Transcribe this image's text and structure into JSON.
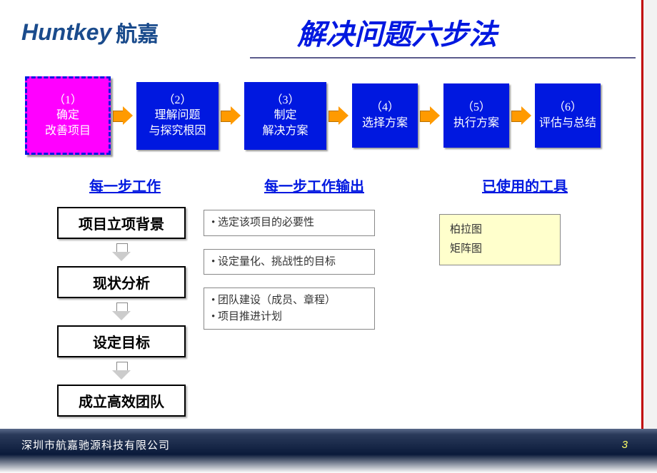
{
  "logo": {
    "en": "Huntkey",
    "cn": "航嘉"
  },
  "title": "解决问题六步法",
  "steps": [
    {
      "num": "（1）",
      "l1": "确定",
      "l2": "改善项目",
      "kind": "active"
    },
    {
      "num": "（2）",
      "l1": "理解问题",
      "l2": "与探究根因",
      "kind": "normal"
    },
    {
      "num": "（3）",
      "l1": "制定",
      "l2": "解决方案",
      "kind": "normal"
    },
    {
      "num": "（4）",
      "l1": "选择方案",
      "l2": "",
      "kind": "small"
    },
    {
      "num": "（5）",
      "l1": "执行方案",
      "l2": "",
      "kind": "small"
    },
    {
      "num": "（6）",
      "l1": "评估与总结",
      "l2": "",
      "kind": "small"
    }
  ],
  "section_heads": {
    "col1": "每一步工作",
    "col2": "每一步工作输出",
    "col3": "已使用的工具"
  },
  "stages": [
    "项目立项背景",
    "现状分析",
    "设定目标",
    "成立高效团队"
  ],
  "outputs": [
    [
      "选定该项目的必要性"
    ],
    [
      "设定量化、挑战性的目标"
    ],
    [
      "团队建设（成员、章程）",
      "项目推进计划"
    ]
  ],
  "tools": [
    "柏拉图",
    "矩阵图"
  ],
  "footer": {
    "company": "深圳市航嘉驰源科技有限公司",
    "page": "3"
  },
  "colors": {
    "brand": "#1a4b8c",
    "title": "#0018e0",
    "step_active_bg": "#ff00ff",
    "step_bg": "#0018e0",
    "arrow": "#ff9a00",
    "tool_bg": "#ffffcc",
    "accent_bar": "#c00000"
  }
}
